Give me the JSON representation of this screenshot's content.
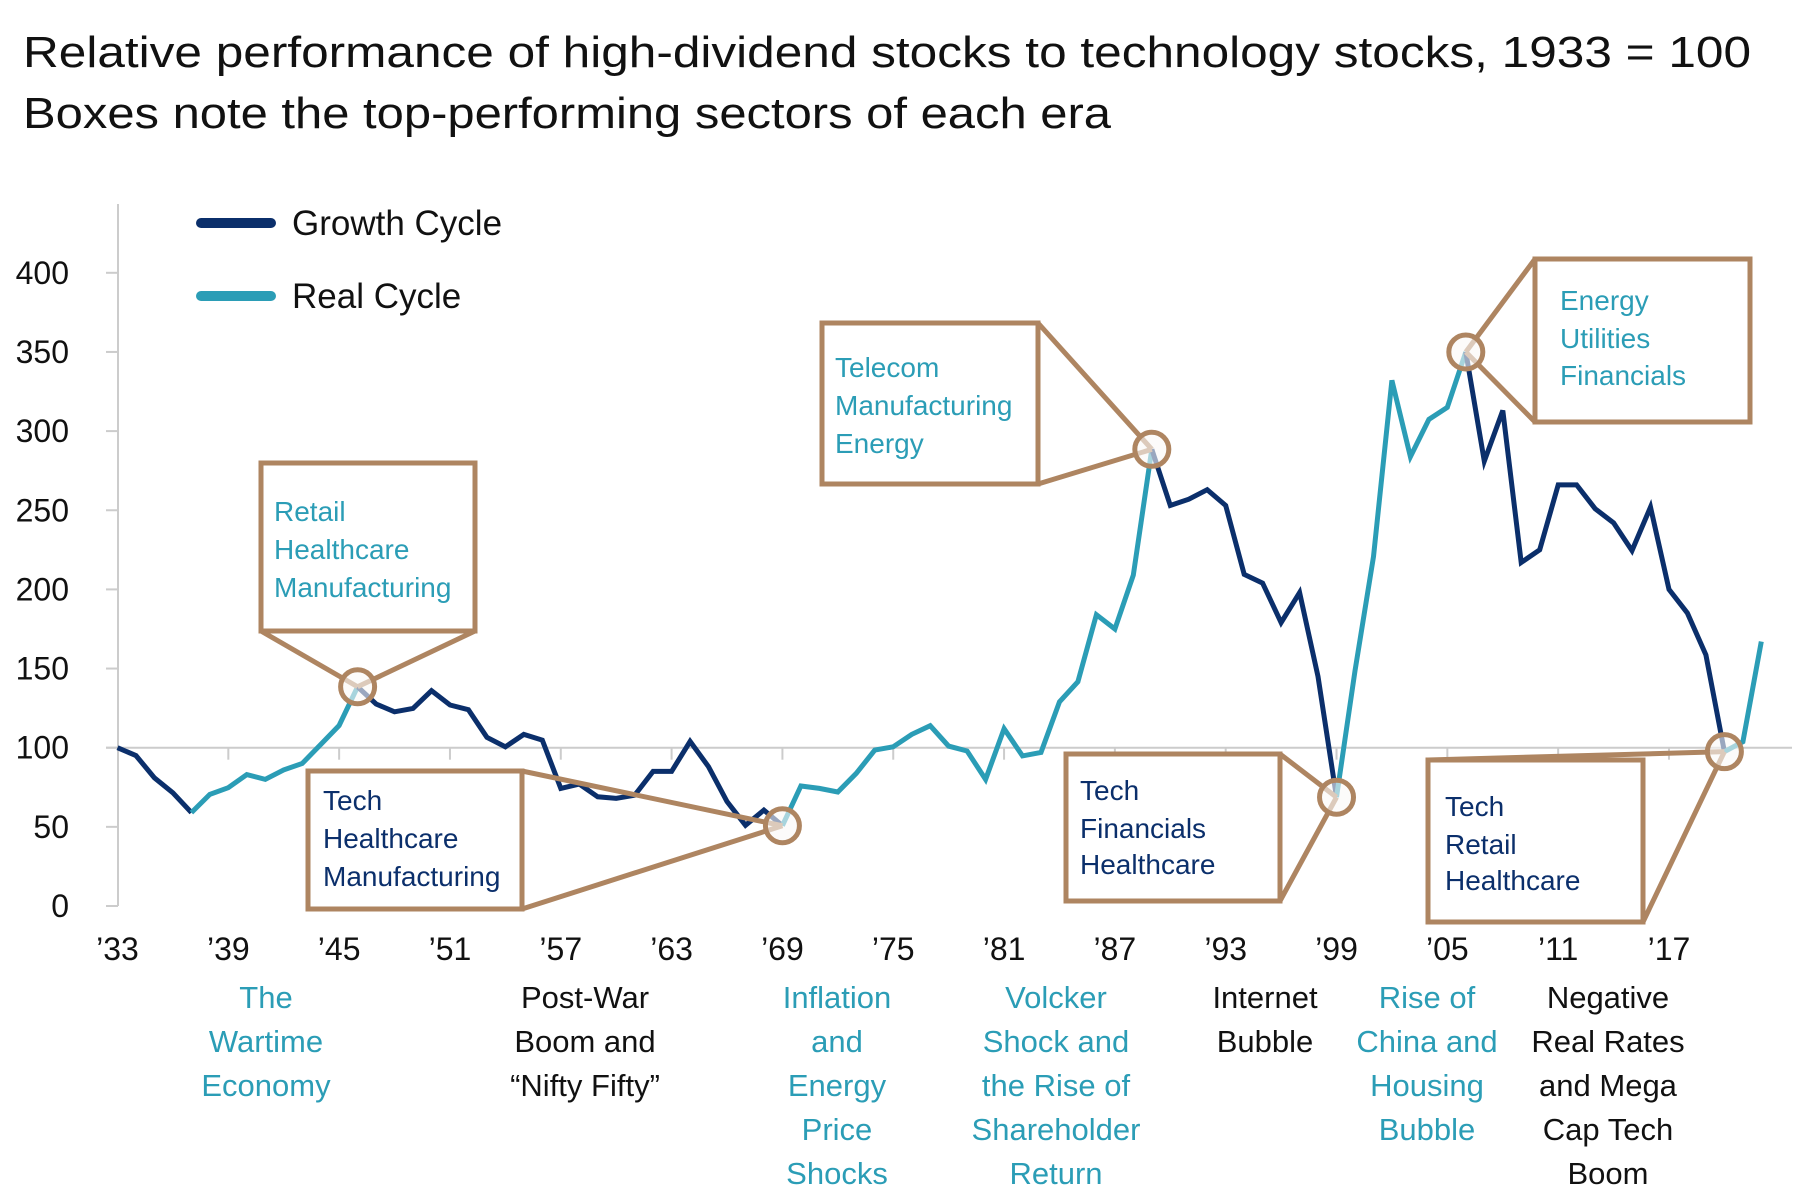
{
  "colors": {
    "growth": "#0b2f6b",
    "real": "#2b9db6",
    "callout": "#ae8561",
    "grid": "#cccccc",
    "text": "#111111"
  },
  "chart_data": {
    "type": "line",
    "title": [
      "Relative performance of high-dividend stocks to technology stocks, 1933 = 100",
      "Boxes note the top-performing sectors of each era"
    ],
    "xlabel": "",
    "ylabel": "",
    "ylim": [
      0,
      400
    ],
    "xlim": [
      1933,
      2022
    ],
    "y_ticks": [
      400,
      350,
      300,
      250,
      200,
      150,
      100,
      50,
      0
    ],
    "x_ticks": [
      1933,
      1939,
      1945,
      1951,
      1957,
      1963,
      1969,
      1975,
      1981,
      1987,
      1993,
      1999,
      2005,
      2011,
      2017
    ],
    "x_tick_labels": [
      "’33",
      "’39",
      "’45",
      "’51",
      "’57",
      "’63",
      "’69",
      "’75",
      "’81",
      "’87",
      "’93",
      "’99",
      "’05",
      "’11",
      "’17"
    ],
    "grid": "baseline at 100 only",
    "legend_position": "top-left",
    "legend": [
      {
        "name": "Growth Cycle",
        "color": "#0b2f6b"
      },
      {
        "name": "Real Cycle",
        "color": "#2b9db6"
      }
    ],
    "points": [
      [
        1933,
        100
      ],
      [
        1934,
        95
      ],
      [
        1935,
        81
      ],
      [
        1936,
        71.5
      ],
      [
        1937,
        59
      ],
      [
        1938,
        70.5
      ],
      [
        1939,
        74.7
      ],
      [
        1940,
        83
      ],
      [
        1941,
        80
      ],
      [
        1942,
        86
      ],
      [
        1943,
        90
      ],
      [
        1944,
        102
      ],
      [
        1945,
        114
      ],
      [
        1946,
        138.5
      ],
      [
        1947,
        127.6
      ],
      [
        1948,
        122.7
      ],
      [
        1949,
        124.8
      ],
      [
        1950,
        136
      ],
      [
        1951,
        127
      ],
      [
        1952,
        124
      ],
      [
        1953,
        106.6
      ],
      [
        1954,
        100.6
      ],
      [
        1955,
        108.4
      ],
      [
        1956,
        104.8
      ],
      [
        1957,
        74.3
      ],
      [
        1958,
        77
      ],
      [
        1959,
        69
      ],
      [
        1960,
        68
      ],
      [
        1961,
        70
      ],
      [
        1962,
        85
      ],
      [
        1963,
        85
      ],
      [
        1964,
        104
      ],
      [
        1965,
        88
      ],
      [
        1966,
        66
      ],
      [
        1967,
        51
      ],
      [
        1968,
        60.6
      ],
      [
        1969,
        50.7
      ],
      [
        1970,
        75.8
      ],
      [
        1971,
        74.3
      ],
      [
        1972,
        72
      ],
      [
        1973,
        83.8
      ],
      [
        1974,
        98.5
      ],
      [
        1975,
        100.6
      ],
      [
        1976,
        108.4
      ],
      [
        1977,
        113.9
      ],
      [
        1978,
        101
      ],
      [
        1979,
        97.9
      ],
      [
        1980,
        80
      ],
      [
        1981,
        112
      ],
      [
        1982,
        94.8
      ],
      [
        1983,
        97
      ],
      [
        1984,
        129
      ],
      [
        1985,
        141.7
      ],
      [
        1986,
        184
      ],
      [
        1987,
        175
      ],
      [
        1988,
        209
      ],
      [
        1989,
        288.5
      ],
      [
        1990,
        253
      ],
      [
        1991,
        257
      ],
      [
        1992,
        263
      ],
      [
        1993,
        253
      ],
      [
        1994,
        209.5
      ],
      [
        1995,
        204
      ],
      [
        1996,
        179
      ],
      [
        1997,
        198
      ],
      [
        1998,
        145
      ],
      [
        1999,
        68.7
      ],
      [
        2000,
        148.6
      ],
      [
        2001,
        220.7
      ],
      [
        2002,
        332
      ],
      [
        2003,
        283.8
      ],
      [
        2004,
        307.4
      ],
      [
        2005,
        315
      ],
      [
        2006,
        350
      ],
      [
        2007,
        281
      ],
      [
        2008,
        313
      ],
      [
        2009,
        217
      ],
      [
        2010,
        225
      ],
      [
        2011,
        266
      ],
      [
        2012,
        266
      ],
      [
        2013,
        251
      ],
      [
        2014,
        242
      ],
      [
        2015,
        224.5
      ],
      [
        2016,
        252
      ],
      [
        2017,
        200
      ],
      [
        2018,
        185
      ],
      [
        2019,
        158.6
      ],
      [
        2020,
        97.5
      ],
      [
        2021,
        103.8
      ],
      [
        2022,
        167
      ]
    ],
    "cycles": [
      {
        "series": "Growth Cycle",
        "from": 1933,
        "to": 1937
      },
      {
        "series": "Real Cycle",
        "from": 1937,
        "to": 1946
      },
      {
        "series": "Growth Cycle",
        "from": 1946,
        "to": 1969
      },
      {
        "series": "Real Cycle",
        "from": 1969,
        "to": 1989
      },
      {
        "series": "Growth Cycle",
        "from": 1989,
        "to": 1999
      },
      {
        "series": "Real Cycle",
        "from": 1999,
        "to": 2006
      },
      {
        "series": "Growth Cycle",
        "from": 2006,
        "to": 2020
      },
      {
        "series": "Real Cycle",
        "from": 2020,
        "to": 2022
      }
    ],
    "annotations": [
      {
        "year": 1946,
        "cycle": "Real Cycle",
        "sectors": [
          "Retail",
          "Healthcare",
          "Manufacturing"
        ]
      },
      {
        "year": 1969,
        "cycle": "Growth Cycle",
        "sectors": [
          "Tech",
          "Healthcare",
          "Manufacturing"
        ]
      },
      {
        "year": 1989,
        "cycle": "Real Cycle",
        "sectors": [
          "Telecom",
          "Manufacturing",
          "Energy"
        ]
      },
      {
        "year": 1999,
        "cycle": "Growth Cycle",
        "sectors": [
          "Tech",
          "Financials",
          "Healthcare"
        ]
      },
      {
        "year": 2006,
        "cycle": "Real Cycle",
        "sectors": [
          "Energy",
          "Utilities",
          "Financials"
        ]
      },
      {
        "year": 2020,
        "cycle": "Growth Cycle",
        "sectors": [
          "Tech",
          "Retail",
          "Healthcare"
        ]
      }
    ],
    "eras": [
      {
        "cycle": "Real Cycle",
        "lines": [
          "The",
          "Wartime",
          "Economy"
        ]
      },
      {
        "cycle": "Growth Cycle",
        "lines": [
          "Post-War",
          "Boom and",
          "“Nifty Fifty”"
        ]
      },
      {
        "cycle": "Real Cycle",
        "lines": [
          "Inflation",
          "and",
          "Energy",
          "Price",
          "Shocks"
        ]
      },
      {
        "cycle": "Real Cycle",
        "lines": [
          "Volcker",
          "Shock and",
          "the Rise of",
          "Shareholder",
          "Return"
        ]
      },
      {
        "cycle": "Growth Cycle",
        "lines": [
          "Internet",
          "Bubble"
        ]
      },
      {
        "cycle": "Real Cycle",
        "lines": [
          "Rise of",
          "China and",
          "Housing",
          "Bubble"
        ]
      },
      {
        "cycle": "Growth Cycle",
        "lines": [
          "Negative",
          "Real Rates",
          "and Mega",
          "Cap Tech",
          "Boom"
        ]
      }
    ]
  }
}
